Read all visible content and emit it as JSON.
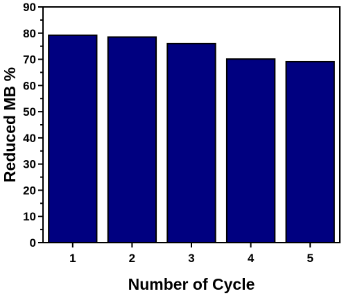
{
  "chart_data": {
    "type": "bar",
    "categories": [
      "1",
      "2",
      "3",
      "4",
      "5"
    ],
    "values": [
      79.2,
      78.5,
      76.0,
      70.1,
      69.1
    ],
    "xlabel": "Number of Cycle",
    "ylabel": "Reduced MB %",
    "ylim": [
      0,
      90
    ],
    "yticks": [
      0,
      10,
      20,
      30,
      40,
      50,
      60,
      70,
      80,
      90
    ],
    "grid": false,
    "bar_color": "#000080",
    "edge_color": "#000000"
  }
}
